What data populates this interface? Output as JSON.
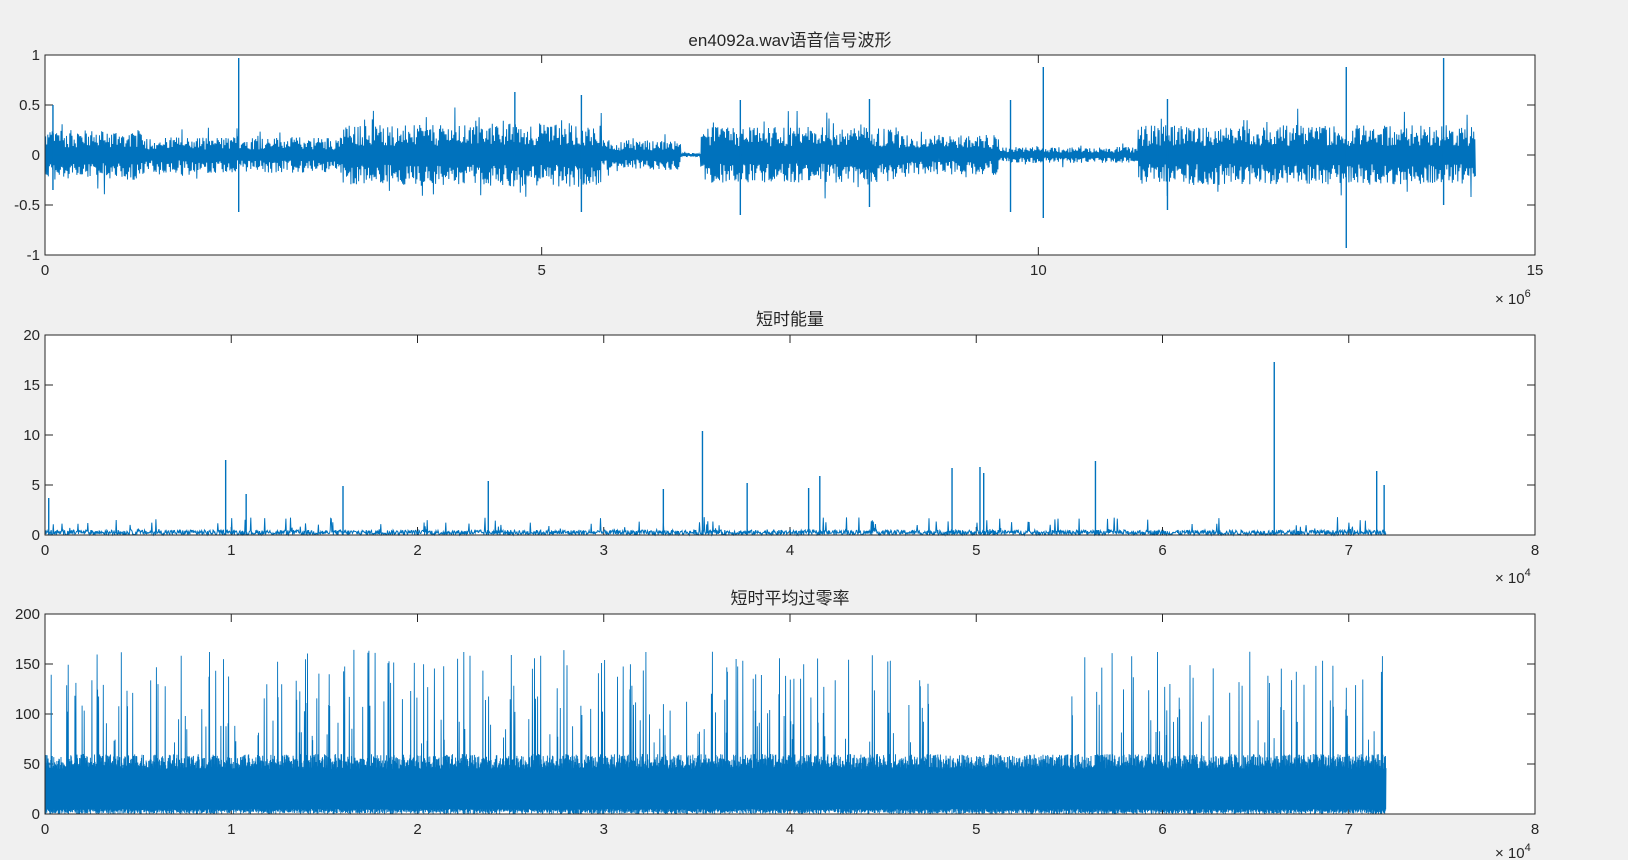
{
  "figure": {
    "background": "#f0f0f0",
    "axes_color": "#262626",
    "line_color": "#0072bd"
  },
  "chart_data": [
    {
      "type": "line",
      "title": "en4092a.wav语音信号波形",
      "xlim": [
        0,
        15
      ],
      "ylim": [
        -1,
        1
      ],
      "x_exponent_label": "× 10",
      "x_exponent": "6",
      "xticks": [
        "0",
        "5",
        "10",
        "15"
      ],
      "yticks": [
        "-1",
        "-0.5",
        "0",
        "0.5",
        "1"
      ],
      "data_extent_x": 14.4,
      "grid": false,
      "series": [
        {
          "color": "#0072bd",
          "segments": [
            {
              "x": [
                0.0,
                1.0
              ],
              "amp": 0.25
            },
            {
              "x": [
                1.0,
                3.0
              ],
              "amp": 0.18
            },
            {
              "x": [
                3.0,
                4.4
              ],
              "amp": 0.3
            },
            {
              "x": [
                4.4,
                5.6
              ],
              "amp": 0.32
            },
            {
              "x": [
                5.6,
                6.4
              ],
              "amp": 0.15
            },
            {
              "x": [
                6.4,
                6.6
              ],
              "amp": 0.02
            },
            {
              "x": [
                6.6,
                8.6
              ],
              "amp": 0.28
            },
            {
              "x": [
                8.6,
                9.6
              ],
              "amp": 0.2
            },
            {
              "x": [
                9.6,
                11.0
              ],
              "amp": 0.08
            },
            {
              "x": [
                11.0,
                14.4
              ],
              "amp": 0.3
            }
          ],
          "peaks": [
            {
              "x": 0.08,
              "hi": 0.5,
              "lo": -0.35
            },
            {
              "x": 1.95,
              "hi": 0.97,
              "lo": -0.57
            },
            {
              "x": 4.73,
              "hi": 0.63,
              "lo": -0.2
            },
            {
              "x": 5.4,
              "hi": 0.6,
              "lo": -0.57
            },
            {
              "x": 7.0,
              "hi": 0.55,
              "lo": -0.6
            },
            {
              "x": 8.3,
              "hi": 0.56,
              "lo": -0.52
            },
            {
              "x": 9.72,
              "hi": 0.55,
              "lo": -0.57
            },
            {
              "x": 10.05,
              "hi": 0.88,
              "lo": -0.63
            },
            {
              "x": 11.3,
              "hi": 0.56,
              "lo": -0.55
            },
            {
              "x": 13.1,
              "hi": 0.88,
              "lo": -0.93
            },
            {
              "x": 14.08,
              "hi": 0.97,
              "lo": -0.5
            }
          ]
        }
      ]
    },
    {
      "type": "line",
      "title": "短时能量",
      "xlim": [
        0,
        8
      ],
      "ylim": [
        0,
        20
      ],
      "x_exponent_label": "× 10",
      "x_exponent": "4",
      "xticks": [
        "0",
        "1",
        "2",
        "3",
        "4",
        "5",
        "6",
        "7",
        "8"
      ],
      "yticks": [
        "0",
        "5",
        "10",
        "15",
        "20"
      ],
      "data_extent_x": 7.2,
      "grid": false,
      "series": [
        {
          "color": "#0072bd",
          "baseline": 0.5,
          "spikes": [
            {
              "x": 0.02,
              "y": 3.7
            },
            {
              "x": 0.97,
              "y": 7.5
            },
            {
              "x": 1.08,
              "y": 4.1
            },
            {
              "x": 1.6,
              "y": 4.9
            },
            {
              "x": 2.38,
              "y": 5.4
            },
            {
              "x": 3.32,
              "y": 4.6
            },
            {
              "x": 3.53,
              "y": 10.4
            },
            {
              "x": 3.77,
              "y": 5.2
            },
            {
              "x": 4.1,
              "y": 4.7
            },
            {
              "x": 4.16,
              "y": 5.9
            },
            {
              "x": 4.87,
              "y": 6.7
            },
            {
              "x": 5.02,
              "y": 6.8
            },
            {
              "x": 5.04,
              "y": 6.2
            },
            {
              "x": 5.64,
              "y": 7.4
            },
            {
              "x": 6.6,
              "y": 17.3
            },
            {
              "x": 7.15,
              "y": 6.4
            },
            {
              "x": 7.19,
              "y": 5.0
            }
          ]
        }
      ]
    },
    {
      "type": "line",
      "title": "短时平均过零率",
      "xlim": [
        0,
        8
      ],
      "ylim": [
        0,
        200
      ],
      "x_exponent_label": "× 10",
      "x_exponent": "4",
      "xticks": [
        "0",
        "1",
        "2",
        "3",
        "4",
        "5",
        "6",
        "7",
        "8"
      ],
      "yticks": [
        "0",
        "50",
        "100",
        "150",
        "200"
      ],
      "data_extent_x": 7.2,
      "grid": false,
      "series": [
        {
          "color": "#0072bd",
          "band": [
            5,
            60
          ],
          "max_peak": 165,
          "quiet_ranges": [
            [
              4.75,
              5.5
            ]
          ]
        }
      ]
    }
  ]
}
